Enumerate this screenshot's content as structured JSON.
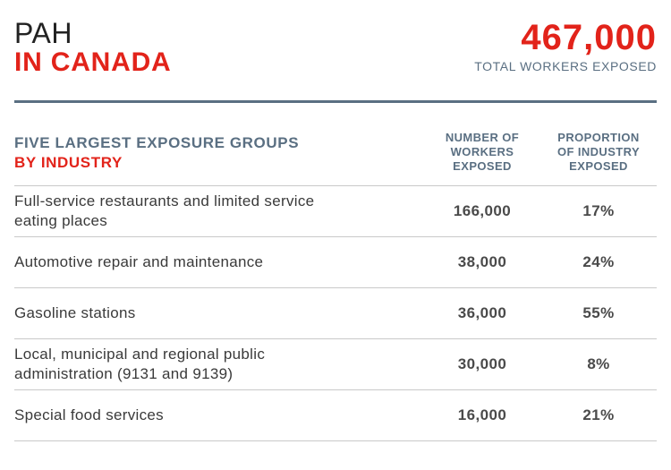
{
  "header": {
    "title_line1": "PAH",
    "title_line2": "IN CANADA",
    "total_value": "467,000",
    "total_label": "TOTAL WORKERS EXPOSED"
  },
  "table": {
    "group_heading_line1": "FIVE LARGEST EXPOSURE GROUPS",
    "group_heading_line2": "BY INDUSTRY",
    "col_workers": [
      "NUMBER OF",
      "WORKERS",
      "EXPOSED"
    ],
    "col_proportion": [
      "PROPORTION",
      "OF INDUSTRY",
      "EXPOSED"
    ],
    "rows": [
      {
        "industry": [
          "Full-service restaurants and limited service",
          "eating places"
        ],
        "workers": "166,000",
        "proportion": "17%"
      },
      {
        "industry": [
          "Automotive repair and maintenance"
        ],
        "workers": "38,000",
        "proportion": "24%"
      },
      {
        "industry": [
          "Gasoline stations"
        ],
        "workers": "36,000",
        "proportion": "55%"
      },
      {
        "industry": [
          "Local, municipal and regional public",
          "administration (9131 and 9139)"
        ],
        "workers": "30,000",
        "proportion": "8%"
      },
      {
        "industry": [
          "Special food services"
        ],
        "workers": "16,000",
        "proportion": "21%"
      }
    ]
  },
  "colors": {
    "accent_red": "#e2231a",
    "slate": "#5a6f82",
    "rule": "#c9c9c9"
  }
}
